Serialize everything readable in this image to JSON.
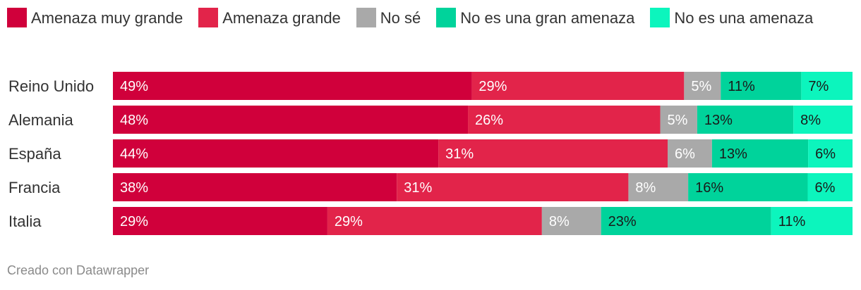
{
  "chart_data": {
    "type": "bar",
    "orientation": "horizontal",
    "stacked": true,
    "categories": [
      "Reino Unido",
      "Alemania",
      "España",
      "Francia",
      "Italia"
    ],
    "series": [
      {
        "name": "Amenaza muy grande",
        "color": "#d0003b",
        "text_color": "#ffffff",
        "values": [
          49,
          48,
          44,
          38,
          29
        ]
      },
      {
        "name": "Amenaza grande",
        "color": "#e2244a",
        "text_color": "#ffffff",
        "values": [
          29,
          26,
          31,
          31,
          29
        ]
      },
      {
        "name": "No sé",
        "color": "#a9a9a9",
        "text_color": "#ffffff",
        "values": [
          5,
          5,
          6,
          8,
          8
        ]
      },
      {
        "name": "No es una gran amenaza",
        "color": "#00d39b",
        "text_color": "#1a1a1a",
        "values": [
          11,
          13,
          13,
          16,
          23
        ]
      },
      {
        "name": "No es una amenaza",
        "color": "#0cf5bd",
        "text_color": "#1a1a1a",
        "values": [
          7,
          8,
          6,
          6,
          11
        ]
      }
    ],
    "value_suffix": "%",
    "legend_position": "top-left",
    "grid": false
  },
  "footer": "Creado con Datawrapper"
}
